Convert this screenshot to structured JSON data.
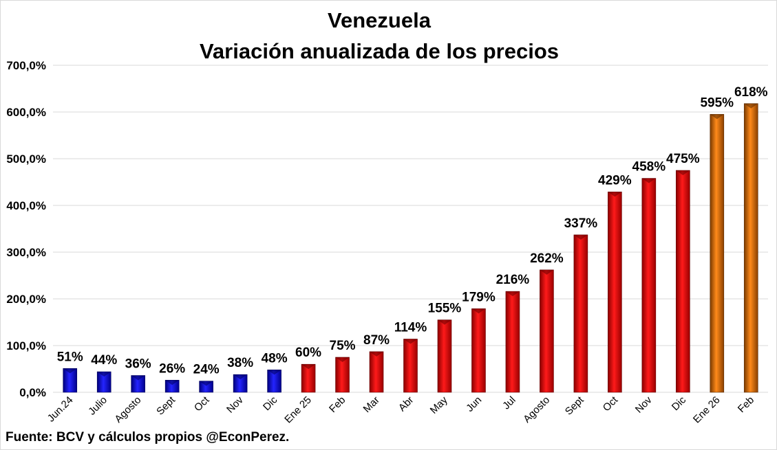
{
  "chart_data": {
    "type": "bar",
    "title": "Venezuela",
    "subtitle": "Variación anualizada de los precios",
    "xlabel": "",
    "ylabel": "",
    "ylim": [
      0,
      700
    ],
    "yticks": [
      0,
      100,
      200,
      300,
      400,
      500,
      600,
      700
    ],
    "ytick_labels": [
      "0,0%",
      "100,0%",
      "200,0%",
      "300,0%",
      "400,0%",
      "500,0%",
      "600,0%",
      "700,0%"
    ],
    "grid": true,
    "legend": "none",
    "categories": [
      "Jun.24",
      "Julio",
      "Agosto",
      "Sept",
      "Oct",
      "Nov",
      "Dic",
      "Ene 25",
      "Feb",
      "Mar",
      "Abr",
      "May",
      "Jun",
      "Jul",
      "Agosto",
      "Sept",
      "Oct",
      "Nov",
      "Dic",
      "Ene 26",
      "Feb"
    ],
    "values": [
      51,
      44,
      36,
      26,
      24,
      38,
      48,
      60,
      75,
      87,
      114,
      155,
      179,
      216,
      262,
      337,
      429,
      458,
      475,
      595,
      618
    ],
    "data_labels": [
      "51%",
      "44%",
      "36%",
      "26%",
      "24%",
      "38%",
      "48%",
      "60%",
      "75%",
      "87%",
      "114%",
      "155%",
      "179%",
      "216%",
      "262%",
      "337%",
      "429%",
      "458%",
      "475%",
      "595%",
      "618%"
    ],
    "bar_colors": [
      "#0000ff",
      "#0000ff",
      "#0000ff",
      "#0000ff",
      "#0000ff",
      "#0000ff",
      "#0000ff",
      "#ff0000",
      "#ff0000",
      "#ff0000",
      "#ff0000",
      "#ff0000",
      "#ff0000",
      "#ff0000",
      "#ff0000",
      "#ff0000",
      "#ff0000",
      "#ff0000",
      "#ff0000",
      "#e36c09",
      "#e36c09"
    ]
  },
  "source": "Fuente: BCV y cálculos propios @EconPerez."
}
